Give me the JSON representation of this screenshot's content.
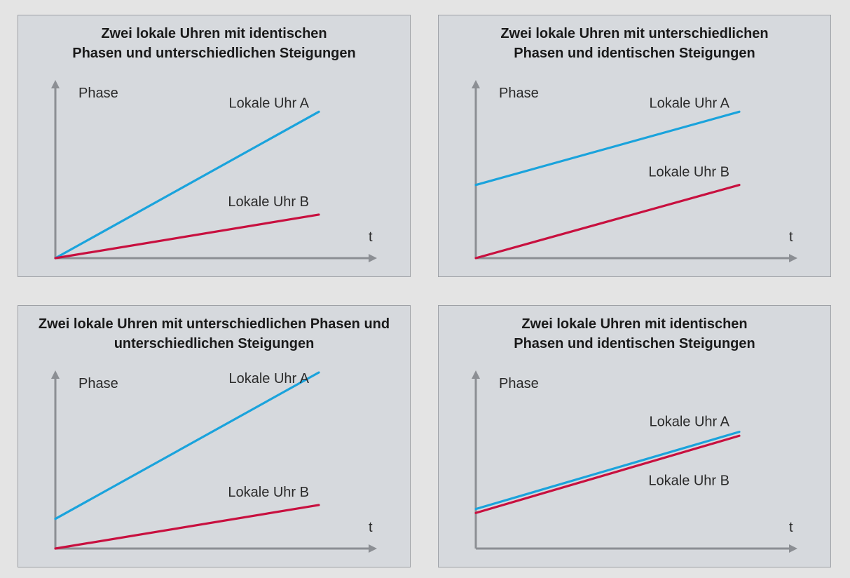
{
  "colors": {
    "clock_a": "#1aa3dc",
    "clock_b": "#c8103f",
    "axis": "#8c8f94",
    "panel_bg": "#d6d9dd"
  },
  "chart_data": [
    {
      "type": "line",
      "title_lines": [
        "Zwei lokale Uhren mit identischen",
        "Phasen und unterschiedlichen Steigungen"
      ],
      "xlabel": "t",
      "ylabel": "Phase",
      "ylim": [
        0,
        1
      ],
      "series": [
        {
          "name": "Lokale Uhr A",
          "color": "#1aa3dc",
          "x": [
            0,
            1
          ],
          "y": [
            0,
            0.74
          ]
        },
        {
          "name": "Lokale Uhr B",
          "color": "#c8103f",
          "x": [
            0,
            1
          ],
          "y": [
            0,
            0.22
          ]
        }
      ]
    },
    {
      "type": "line",
      "title_lines": [
        "Zwei lokale Uhren mit unterschiedlichen",
        "Phasen und identischen Steigungen"
      ],
      "xlabel": "t",
      "ylabel": "Phase",
      "ylim": [
        0,
        1
      ],
      "series": [
        {
          "name": "Lokale Uhr A",
          "color": "#1aa3dc",
          "x": [
            0,
            1
          ],
          "y": [
            0.37,
            0.74
          ]
        },
        {
          "name": "Lokale Uhr B",
          "color": "#c8103f",
          "x": [
            0,
            1
          ],
          "y": [
            0,
            0.37
          ]
        }
      ]
    },
    {
      "type": "line",
      "title_lines": [
        "Zwei lokale Uhren mit unterschiedlichen Phasen und",
        "unterschiedlichen Steigungen"
      ],
      "xlabel": "t",
      "ylabel": "Phase",
      "ylim": [
        0,
        1
      ],
      "series": [
        {
          "name": "Lokale Uhr A",
          "color": "#1aa3dc",
          "x": [
            0,
            1
          ],
          "y": [
            0.15,
            0.89
          ]
        },
        {
          "name": "Lokale Uhr B",
          "color": "#c8103f",
          "x": [
            0,
            1
          ],
          "y": [
            0,
            0.22
          ]
        }
      ]
    },
    {
      "type": "line",
      "title_lines": [
        "Zwei lokale Uhren mit identischen",
        "Phasen und identischen Steigungen"
      ],
      "xlabel": "t",
      "ylabel": "Phase",
      "ylim": [
        0,
        1
      ],
      "series": [
        {
          "name": "Lokale Uhr A",
          "color": "#1aa3dc",
          "x": [
            0,
            1
          ],
          "y": [
            0.2,
            0.59
          ]
        },
        {
          "name": "Lokale Uhr B",
          "color": "#c8103f",
          "x": [
            0,
            1
          ],
          "y": [
            0.18,
            0.57
          ]
        }
      ]
    }
  ]
}
